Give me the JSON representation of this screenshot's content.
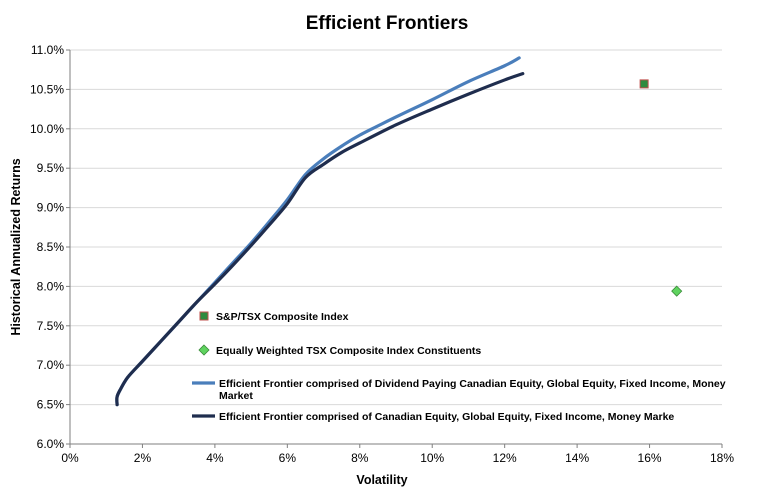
{
  "chart_data": {
    "type": "line",
    "title": "Efficient Frontiers",
    "xlabel": "Volatility",
    "ylabel": "Historical Annualized Returns",
    "xlim": [
      0,
      18
    ],
    "ylim": [
      6.0,
      11.0
    ],
    "x_ticks": [
      "0%",
      "2%",
      "4%",
      "6%",
      "8%",
      "10%",
      "12%",
      "14%",
      "16%",
      "18%"
    ],
    "y_ticks": [
      "6.0%",
      "6.5%",
      "7.0%",
      "7.5%",
      "8.0%",
      "8.5%",
      "9.0%",
      "9.5%",
      "10.0%",
      "10.5%",
      "11.0%"
    ],
    "grid": "horizontal",
    "series": [
      {
        "name": "Efficient Frontier comprised of Dividend Paying Canadian Equity, Global Equity, Fixed Income, Money Market",
        "kind": "line",
        "color": "#4a7ebb",
        "points": [
          [
            1.3,
            6.5
          ],
          [
            1.3,
            6.6
          ],
          [
            1.4,
            6.7
          ],
          [
            1.6,
            6.85
          ],
          [
            2.0,
            7.05
          ],
          [
            2.5,
            7.3
          ],
          [
            3.0,
            7.55
          ],
          [
            3.5,
            7.8
          ],
          [
            4.0,
            8.05
          ],
          [
            4.5,
            8.3
          ],
          [
            5.0,
            8.55
          ],
          [
            5.5,
            8.82
          ],
          [
            6.0,
            9.1
          ],
          [
            6.5,
            9.42
          ],
          [
            7.0,
            9.62
          ],
          [
            7.5,
            9.78
          ],
          [
            8.0,
            9.92
          ],
          [
            9.0,
            10.15
          ],
          [
            10.0,
            10.37
          ],
          [
            11.0,
            10.6
          ],
          [
            12.0,
            10.8
          ],
          [
            12.4,
            10.9
          ]
        ]
      },
      {
        "name": "Efficient Frontier comprised of Canadian Equity, Global Equity, Fixed Income, Money Marke",
        "kind": "line",
        "color": "#1f2d4e",
        "points": [
          [
            1.3,
            6.5
          ],
          [
            1.3,
            6.6
          ],
          [
            1.4,
            6.7
          ],
          [
            1.6,
            6.85
          ],
          [
            2.0,
            7.05
          ],
          [
            2.5,
            7.3
          ],
          [
            3.0,
            7.55
          ],
          [
            3.5,
            7.8
          ],
          [
            4.0,
            8.03
          ],
          [
            4.5,
            8.27
          ],
          [
            5.0,
            8.52
          ],
          [
            5.5,
            8.78
          ],
          [
            6.0,
            9.05
          ],
          [
            6.5,
            9.38
          ],
          [
            7.0,
            9.55
          ],
          [
            7.5,
            9.7
          ],
          [
            8.0,
            9.82
          ],
          [
            9.0,
            10.05
          ],
          [
            10.0,
            10.25
          ],
          [
            11.0,
            10.44
          ],
          [
            12.0,
            10.62
          ],
          [
            12.5,
            10.7
          ]
        ]
      },
      {
        "name": "S&P/TSX Composite Index",
        "kind": "square",
        "color": "#2e8b3e",
        "points": [
          [
            15.85,
            10.57
          ]
        ]
      },
      {
        "name": "Equally Weighted TSX Composite Index Constituents",
        "kind": "diamond",
        "color": "#5fd35f",
        "points": [
          [
            16.75,
            7.94
          ]
        ]
      }
    ],
    "legend": {
      "items": [
        {
          "label": "S&P/TSX Composite Index",
          "marker": "square",
          "color": "#2e8b3e"
        },
        {
          "label": "Equally Weighted TSX Composite Index Constituents",
          "marker": "diamond",
          "color": "#5fd35f"
        },
        {
          "label": "Efficient Frontier comprised of Dividend Paying Canadian Equity, Global Equity, Fixed Income, Money",
          "label2": "Market",
          "marker": "line",
          "color": "#4a7ebb"
        },
        {
          "label": "Efficient Frontier comprised of Canadian Equity, Global Equity, Fixed Income, Money Marke",
          "marker": "line",
          "color": "#1f2d4e"
        }
      ]
    }
  }
}
